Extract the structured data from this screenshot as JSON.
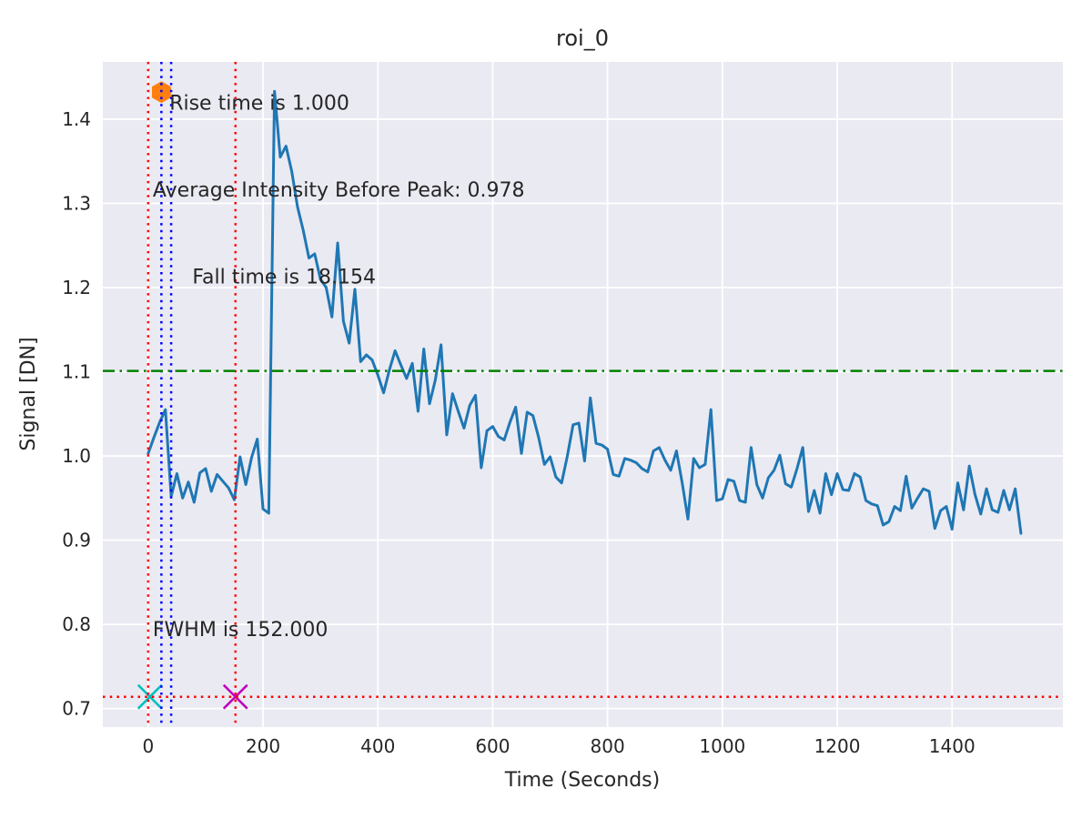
{
  "chart_data": {
    "type": "line",
    "title": "roi_0",
    "xlabel": "Time (Seconds)",
    "ylabel": "Signal [DN]",
    "xlim": [
      -79,
      1593
    ],
    "ylim": [
      0.678,
      1.468
    ],
    "grid": true,
    "legend": "none",
    "axes_background_color": "#eaeaf2",
    "grid_color": "#ffffff",
    "xticks": [
      0,
      200,
      400,
      600,
      800,
      1000,
      1200,
      1400
    ],
    "xtick_labels": [
      "0",
      "200",
      "400",
      "600",
      "800",
      "1000",
      "1200",
      "1400"
    ],
    "yticks": [
      0.7,
      0.8,
      0.9,
      1.0,
      1.1,
      1.2,
      1.3,
      1.4
    ],
    "ytick_labels": [
      "0.7",
      "0.8",
      "0.9",
      "1.0",
      "1.1",
      "1.2",
      "1.3",
      "1.4"
    ],
    "series": [
      {
        "name": "signal",
        "color": "#1f77b4",
        "line_width": 3,
        "x_start": 0,
        "x_step": 10,
        "values": [
          1.003,
          1.022,
          1.04,
          1.055,
          0.952,
          0.979,
          0.95,
          0.969,
          0.945,
          0.98,
          0.985,
          0.958,
          0.978,
          0.97,
          0.962,
          0.948,
          0.999,
          0.966,
          0.998,
          1.02,
          0.937,
          0.932,
          1.433,
          1.355,
          1.368,
          1.338,
          1.296,
          1.268,
          1.235,
          1.24,
          1.21,
          1.2,
          1.165,
          1.253,
          1.16,
          1.134,
          1.198,
          1.112,
          1.12,
          1.114,
          1.096,
          1.075,
          1.102,
          1.125,
          1.108,
          1.092,
          1.11,
          1.053,
          1.127,
          1.062,
          1.09,
          1.132,
          1.025,
          1.074,
          1.053,
          1.033,
          1.06,
          1.072,
          0.986,
          1.03,
          1.035,
          1.023,
          1.019,
          1.04,
          1.058,
          1.003,
          1.052,
          1.048,
          1.022,
          0.99,
          0.999,
          0.975,
          0.968,
          1.0,
          1.037,
          1.039,
          0.994,
          1.069,
          1.015,
          1.013,
          1.008,
          0.978,
          0.976,
          0.997,
          0.995,
          0.992,
          0.985,
          0.981,
          1.006,
          1.01,
          0.995,
          0.983,
          1.006,
          0.968,
          0.925,
          0.997,
          0.986,
          0.99,
          1.055,
          0.947,
          0.949,
          0.972,
          0.97,
          0.947,
          0.945,
          1.01,
          0.966,
          0.95,
          0.974,
          0.983,
          1.001,
          0.967,
          0.963,
          0.985,
          1.01,
          0.934,
          0.959,
          0.932,
          0.979,
          0.954,
          0.979,
          0.96,
          0.959,
          0.979,
          0.975,
          0.947,
          0.943,
          0.941,
          0.918,
          0.922,
          0.94,
          0.935,
          0.976,
          0.938,
          0.95,
          0.961,
          0.958,
          0.914,
          0.935,
          0.94,
          0.913,
          0.968,
          0.936,
          0.988,
          0.954,
          0.931,
          0.961,
          0.936,
          0.933,
          0.959,
          0.936,
          0.961,
          0.908
        ]
      }
    ],
    "reference_lines": {
      "vlines": [
        {
          "name": "fwhm-left-red-vline",
          "x": 0,
          "color": "#ff0000",
          "style": "dotted"
        },
        {
          "name": "fwhm-right-red-vline",
          "x": 152,
          "color": "#ff0000",
          "style": "dotted"
        },
        {
          "name": "rise-start-blue-vline",
          "x": 23,
          "color": "#0000ff",
          "style": "dotted"
        },
        {
          "name": "rise-end-blue-vline",
          "x": 40,
          "color": "#0000ff",
          "style": "dotted"
        }
      ],
      "hlines": [
        {
          "name": "threshold-green-hline",
          "y": 1.101,
          "color": "#008000",
          "style": "dashdot"
        },
        {
          "name": "half-max-red-hline",
          "y": 0.714,
          "color": "#ff0000",
          "style": "dotted"
        }
      ]
    },
    "markers": [
      {
        "name": "peak-marker",
        "shape": "hexagon",
        "x": 23,
        "y": 1.432,
        "color": "#ff7f0e",
        "size": 12
      },
      {
        "name": "fwhm-left-marker",
        "shape": "x",
        "x": 3,
        "y": 0.714,
        "color": "#00bfbf",
        "size": 13
      },
      {
        "name": "fwhm-right-marker",
        "shape": "x",
        "x": 152,
        "y": 0.714,
        "color": "#bf00bf",
        "size": 13
      }
    ],
    "annotations": [
      {
        "name": "rise-time-annotation",
        "text": "Rise time is 1.000",
        "x": 37,
        "y": 1.411
      },
      {
        "name": "average-intensity-annotation",
        "text": "Average Intensity Before Peak: 0.978",
        "x": 8,
        "y": 1.308
      },
      {
        "name": "fall-time-annotation",
        "text": "Fall time is 18.154",
        "x": 77,
        "y": 1.205
      },
      {
        "name": "fwhm-annotation",
        "text": "FWHM is 152.000",
        "x": 8,
        "y": 0.786
      }
    ]
  }
}
